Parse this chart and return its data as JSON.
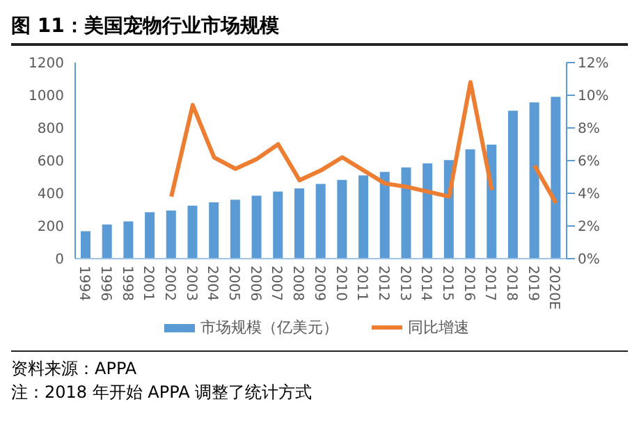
{
  "chart_data": {
    "type": "bar",
    "title": "图 11：美国宠物行业市场规模",
    "categories": [
      "1994",
      "1996",
      "1998",
      "2001",
      "2002",
      "2003",
      "2004",
      "2005",
      "2006",
      "2007",
      "2008",
      "2009",
      "2010",
      "2011",
      "2012",
      "2013",
      "2014",
      "2015",
      "2016",
      "2017",
      "2018",
      "2019",
      "2020E"
    ],
    "series": [
      {
        "name": "市场规模（亿美元）",
        "color": "#5b9bd5",
        "values": [
          168,
          209,
          228,
          284,
          295,
          324,
          345,
          361,
          385,
          411,
          430,
          457,
          482,
          510,
          531,
          558,
          583,
          603,
          669,
          698,
          905,
          956,
          990
        ]
      },
      {
        "name": "同比增速",
        "type": "line",
        "axis": "y2",
        "color": "#ed7d31",
        "values": [
          null,
          null,
          null,
          null,
          3.8,
          9.4,
          6.2,
          5.5,
          6.1,
          7.0,
          4.8,
          5.4,
          6.2,
          5.4,
          4.6,
          4.4,
          4.1,
          3.8,
          10.8,
          4.2,
          null,
          5.7,
          3.4
        ]
      }
    ],
    "ylim": [
      0,
      1200
    ],
    "yticks": [
      0,
      200,
      400,
      600,
      800,
      1000,
      1200
    ],
    "y2lim": [
      0,
      12
    ],
    "y2ticks": [
      {
        "value": 0,
        "label": "0%"
      },
      {
        "value": 2,
        "label": "2%"
      },
      {
        "value": 4,
        "label": "4%"
      },
      {
        "value": 6,
        "label": "6%"
      },
      {
        "value": 8,
        "label": "8%"
      },
      {
        "value": 10,
        "label": "10%"
      },
      {
        "value": 12,
        "label": "12%"
      }
    ],
    "legend": "bottom",
    "marker": "none",
    "line_style": "solid",
    "annotations": [
      "资料来源：APPA",
      "注：2018 年开始 APPA 调整了统计方式"
    ]
  }
}
